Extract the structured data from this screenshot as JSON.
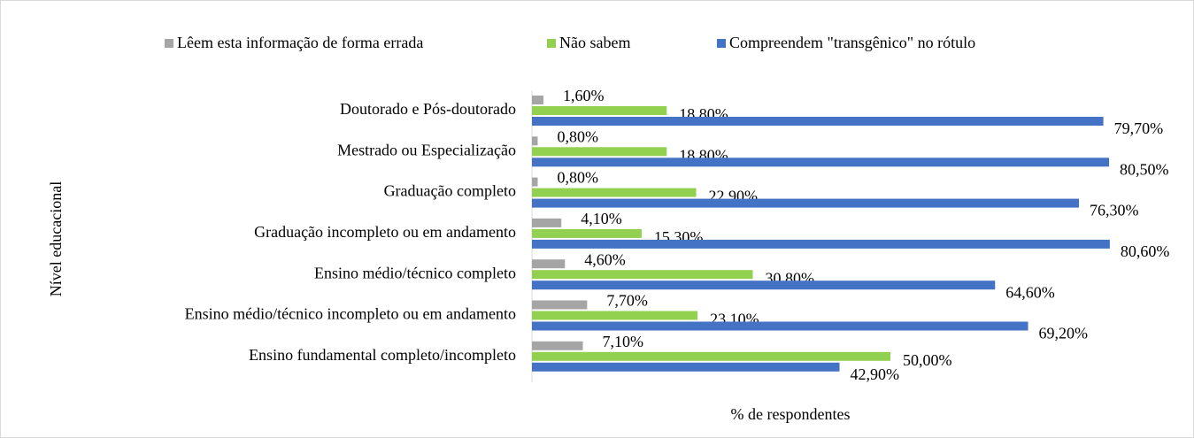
{
  "chart_data": {
    "type": "bar",
    "orientation": "horizontal",
    "y_axis_label": "Nível educacional",
    "x_axis_label": "% de respondentes",
    "categories": [
      "Doutorado e Pós-doutorado",
      "Mestrado ou Especialização",
      "Graduação completo",
      "Graduação incompleto ou em andamento",
      "Ensino médio/técnico completo",
      "Ensino médio/técnico incompleto ou em andamento",
      "Ensino fundamental completo/incompleto"
    ],
    "series": [
      {
        "name": "Lêem esta informação de forma errada",
        "color": "#a5a5a5",
        "values": [
          1.6,
          0.8,
          0.8,
          4.1,
          4.6,
          7.7,
          7.1
        ],
        "value_labels": [
          "1,60%",
          "0,80%",
          "0,80%",
          "4,10%",
          "4,60%",
          "7,70%",
          "7,10%"
        ]
      },
      {
        "name": "Não sabem",
        "color": "#92d050",
        "values": [
          18.8,
          18.8,
          22.9,
          15.3,
          30.8,
          23.1,
          50.0
        ],
        "value_labels": [
          "18,80%",
          "18,80%",
          "22,90%",
          "15,30%",
          "30,80%",
          "23,10%",
          "50,00%"
        ]
      },
      {
        "name": "Compreendem \"transgênico\" no rótulo",
        "color": "#4472c4",
        "values": [
          79.7,
          80.5,
          76.3,
          80.6,
          64.6,
          69.2,
          42.9
        ],
        "value_labels": [
          "79,70%",
          "80,50%",
          "76,30%",
          "80,60%",
          "64,60%",
          "69,20%",
          "42,90%"
        ]
      }
    ],
    "xlim": [
      0,
      90
    ],
    "legend": "top"
  }
}
